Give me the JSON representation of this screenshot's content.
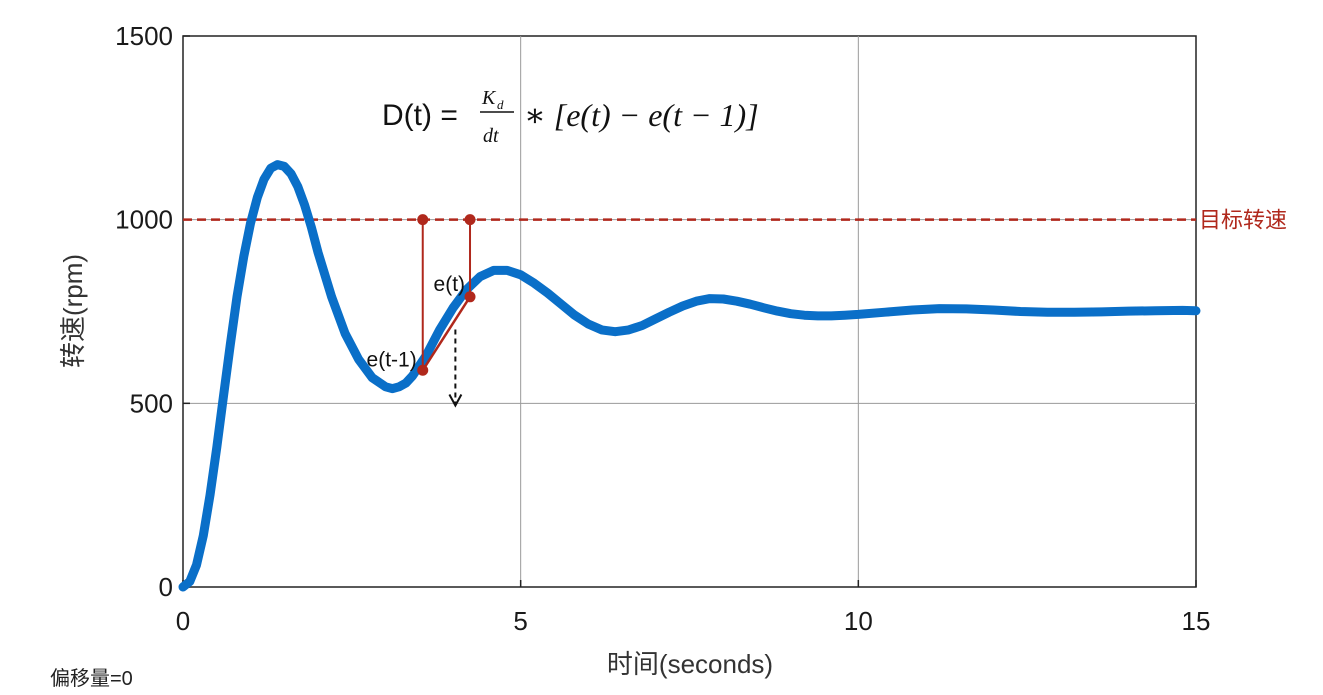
{
  "chart_data": {
    "type": "line",
    "xlabel": "时间(seconds)",
    "ylabel": "转速(rpm)",
    "xlim": [
      0,
      15
    ],
    "ylim": [
      0,
      1500
    ],
    "x_ticks": [
      "0",
      "5",
      "10",
      "15"
    ],
    "y_ticks": [
      "0",
      "500",
      "1000",
      "1500"
    ],
    "grid": true,
    "series": [
      {
        "color": "#0a6fc8",
        "x": [
          0,
          0.1,
          0.2,
          0.3,
          0.4,
          0.5,
          0.6,
          0.7,
          0.8,
          0.9,
          1.0,
          1.1,
          1.2,
          1.3,
          1.4,
          1.5,
          1.6,
          1.7,
          1.8,
          1.9,
          2.0,
          2.2,
          2.4,
          2.6,
          2.8,
          3.0,
          3.1,
          3.2,
          3.3,
          3.4,
          3.6,
          3.8,
          4.0,
          4.2,
          4.4,
          4.6,
          4.8,
          5.0,
          5.2,
          5.4,
          5.6,
          5.8,
          6.0,
          6.2,
          6.4,
          6.6,
          6.8,
          7.0,
          7.2,
          7.4,
          7.6,
          7.8,
          8.0,
          8.2,
          8.4,
          8.6,
          8.8,
          9.0,
          9.2,
          9.4,
          9.6,
          9.8,
          10.0,
          10.4,
          10.8,
          11.2,
          11.6,
          12.0,
          12.4,
          12.8,
          13.2,
          13.6,
          14.0,
          14.4,
          14.8,
          15.0
        ],
        "y": [
          0,
          15,
          60,
          140,
          250,
          380,
          520,
          660,
          790,
          900,
          990,
          1060,
          1110,
          1140,
          1150,
          1145,
          1125,
          1090,
          1040,
          980,
          910,
          790,
          690,
          620,
          570,
          545,
          540,
          545,
          555,
          575,
          630,
          700,
          760,
          810,
          845,
          862,
          862,
          850,
          827,
          800,
          770,
          740,
          716,
          700,
          695,
          700,
          712,
          730,
          748,
          765,
          778,
          785,
          784,
          778,
          770,
          760,
          751,
          744,
          740,
          738,
          738,
          740,
          742,
          748,
          754,
          758,
          757,
          754,
          750,
          748,
          748,
          749,
          751,
          752,
          753,
          752
        ]
      }
    ],
    "target_line": {
      "y": 1000,
      "label": "目标转速",
      "color": "#b0281c"
    },
    "annotations": [
      {
        "label": "e(t-1)",
        "x": 3.55,
        "y": 590
      },
      {
        "label": "e(t)",
        "x": 4.25,
        "y": 790
      }
    ],
    "formula": {
      "lhs": "D(t) =",
      "numerator": "K",
      "numerator_sub": "d",
      "denominator": "dt",
      "rhs": "∗ [e(t)  − e(t − 1)]"
    }
  },
  "footer_text": "偏移量=0"
}
